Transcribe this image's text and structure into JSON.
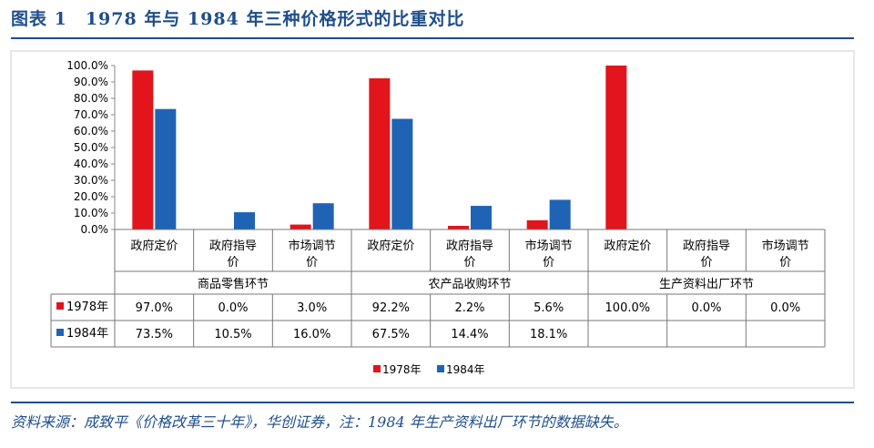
{
  "header": {
    "title": "图表 1　1978 年与 1984 年三种价格形式的比重对比"
  },
  "footer": {
    "source": "资料来源：成致平《价格改革三十年》，华创证券，注：1984 年生产资料出厂环节的数据缺失。"
  },
  "colors": {
    "s1978": "#e2141c",
    "s1984": "#1f63b5",
    "header": "#1f4e8c"
  },
  "chart_data": {
    "type": "bar",
    "title": "",
    "ylim": [
      0,
      100
    ],
    "y_ticks": [
      "0.0%",
      "10.0%",
      "20.0%",
      "30.0%",
      "40.0%",
      "50.0%",
      "60.0%",
      "70.0%",
      "80.0%",
      "90.0%",
      "100.0%"
    ],
    "grid": false,
    "legend_position": "bottom",
    "groups": [
      {
        "name": "商品零售环节",
        "categories": [
          "政府定价",
          "政府指导价",
          "市场调节价"
        ]
      },
      {
        "name": "农产品收购环节",
        "categories": [
          "政府定价",
          "政府指导价",
          "市场调节价"
        ]
      },
      {
        "name": "生产资料出厂环节",
        "categories": [
          "政府定价",
          "政府指导价",
          "市场调节价"
        ]
      }
    ],
    "series": [
      {
        "name": "1978年",
        "values": [
          97.0,
          0.0,
          3.0,
          92.2,
          2.2,
          5.6,
          100.0,
          0.0,
          0.0
        ],
        "labels": [
          "97.0%",
          "0.0%",
          "3.0%",
          "92.2%",
          "2.2%",
          "5.6%",
          "100.0%",
          "0.0%",
          "0.0%"
        ]
      },
      {
        "name": "1984年",
        "values": [
          73.5,
          10.5,
          16.0,
          67.5,
          14.4,
          18.1,
          null,
          null,
          null
        ],
        "labels": [
          "73.5%",
          "10.5%",
          "16.0%",
          "67.5%",
          "14.4%",
          "18.1%",
          "",
          "",
          ""
        ]
      }
    ]
  }
}
